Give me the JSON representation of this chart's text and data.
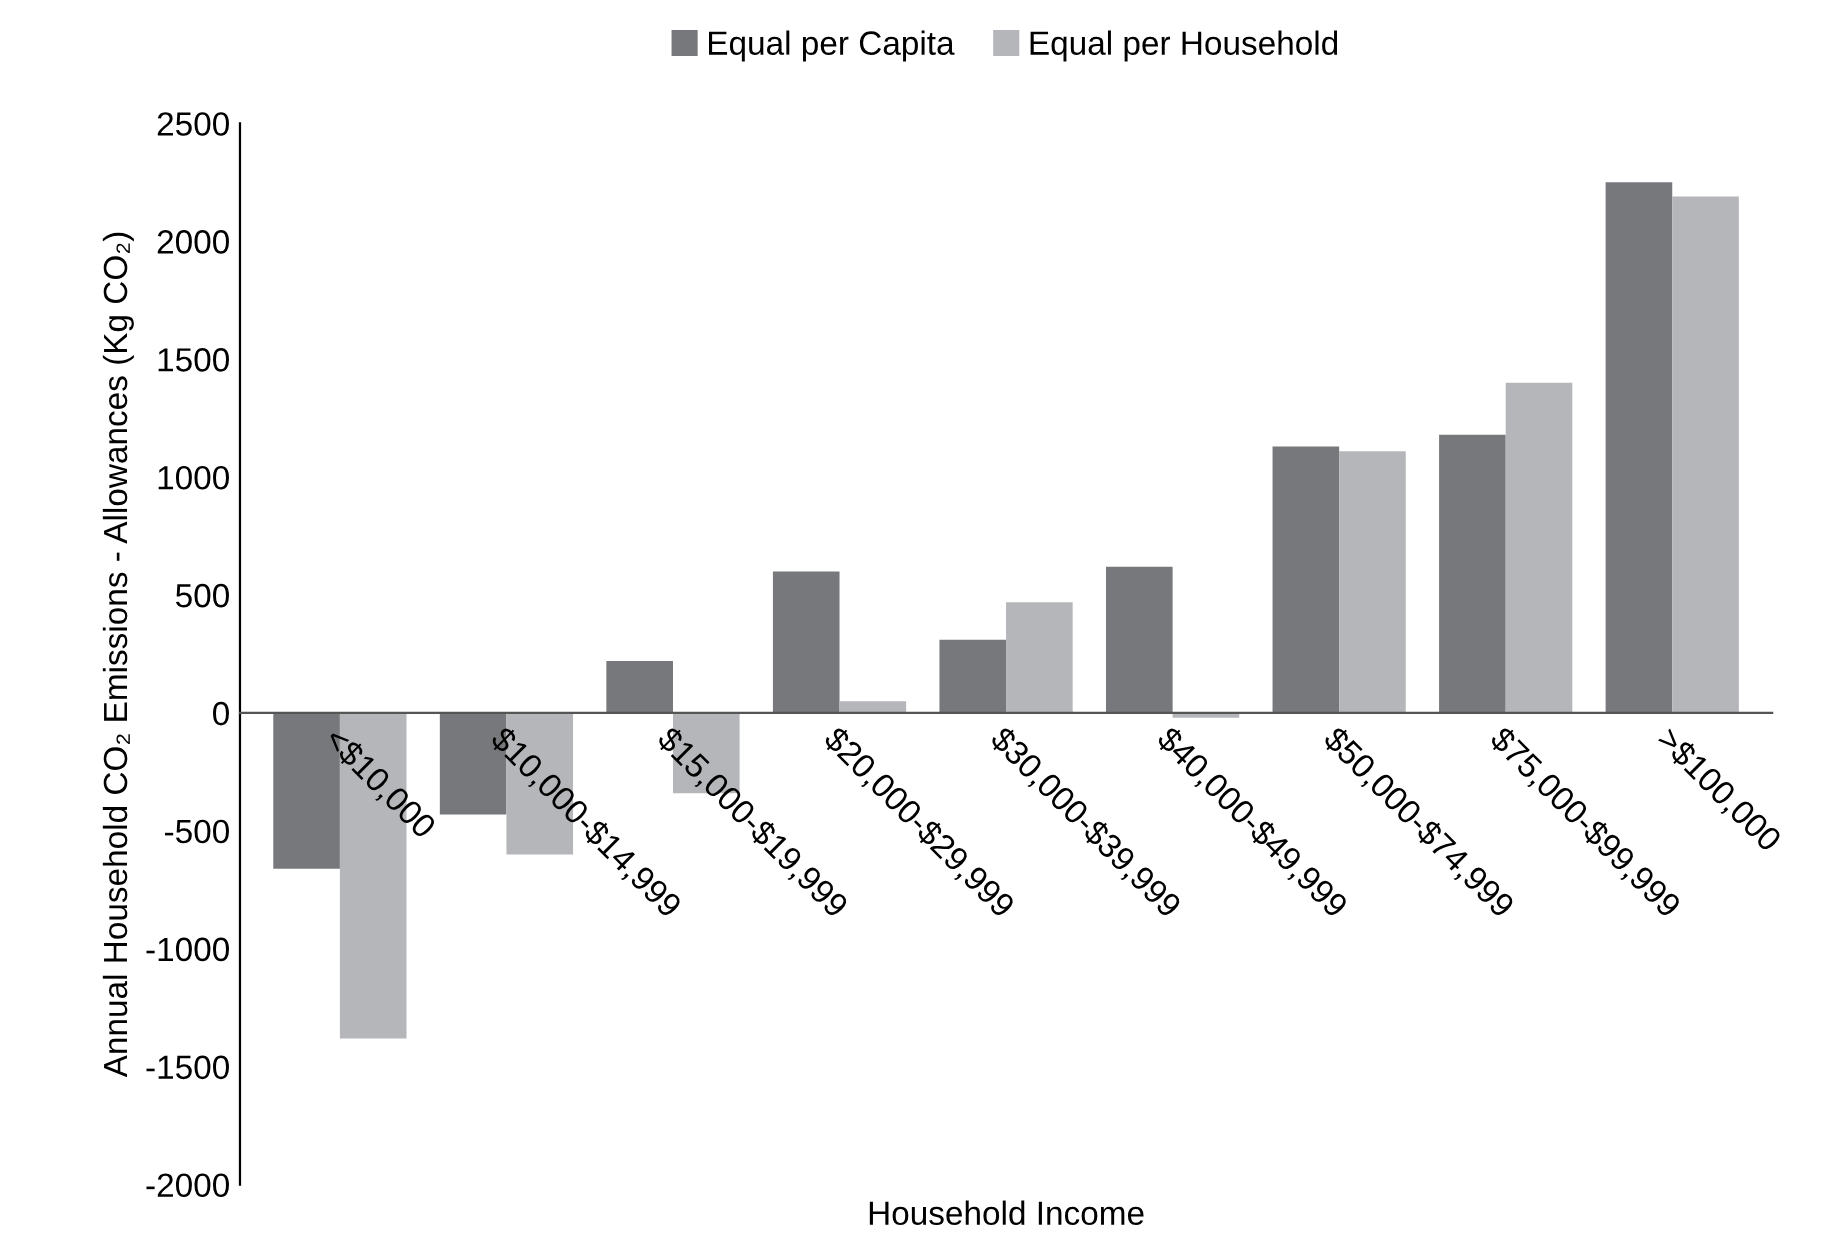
{
  "chart_data": {
    "type": "bar",
    "categories": [
      "<$10,000",
      "$10,000-$14,999",
      "$15,000-$19,999",
      "$20,000-$29,999",
      "$30,000-$39,999",
      "$40,000-$49,999",
      "$50,000-$74,999",
      "$75,000-$99,999",
      ">$100,000"
    ],
    "series": [
      {
        "name": "Equal per Capita",
        "color": "#77787c",
        "values": [
          -660,
          -430,
          220,
          600,
          310,
          620,
          1130,
          1180,
          2250
        ]
      },
      {
        "name": "Equal per Household",
        "color": "#b5b6b9",
        "values": [
          -1380,
          -600,
          -340,
          50,
          470,
          -20,
          1110,
          1400,
          2190
        ]
      }
    ],
    "xlabel": "Household Income",
    "ylabel": "Annual Household CO₂ Emissions - Allowances (Kg CO₂)",
    "ylim": [
      -2000,
      2500
    ],
    "yticks": [
      -2000,
      -1500,
      -1000,
      -500,
      0,
      500,
      1000,
      1500,
      2000,
      2500
    ],
    "legend": "top"
  }
}
